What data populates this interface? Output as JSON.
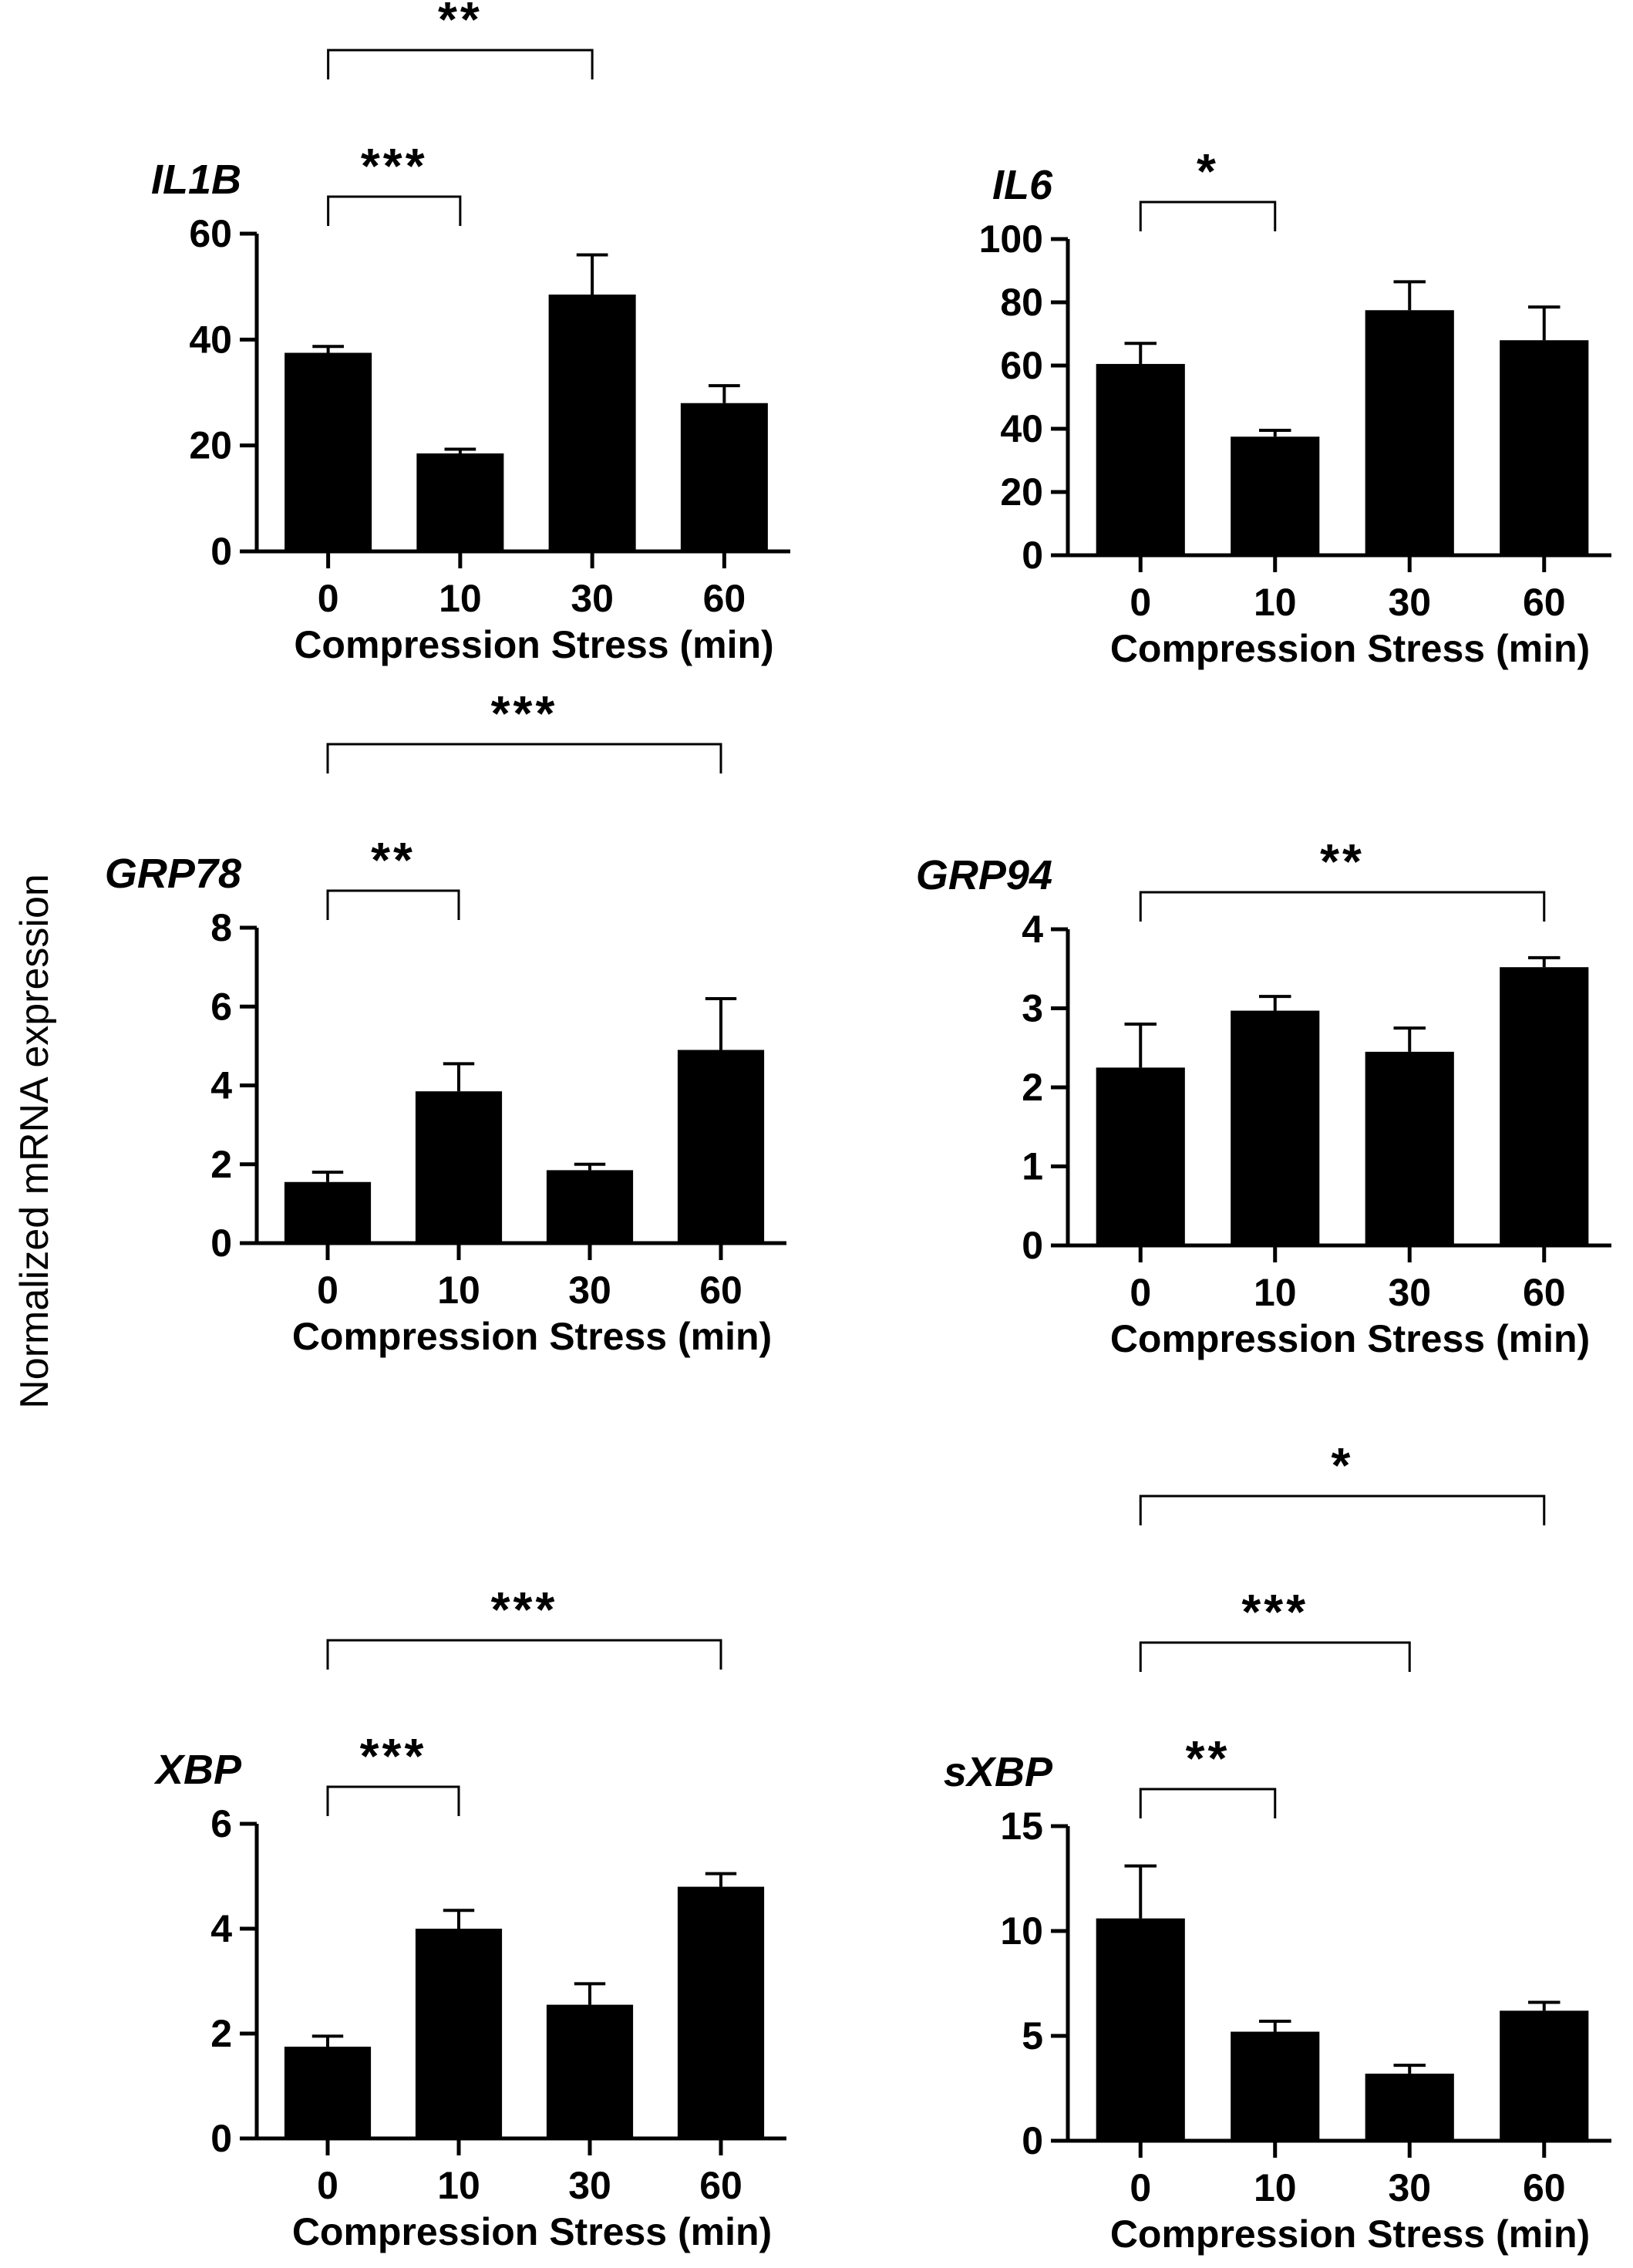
{
  "figure": {
    "shared_ylabel": "Normalized mRNA expression",
    "accent_color": "#000000"
  },
  "chart_data": [
    {
      "type": "bar",
      "title": "IL1B",
      "xlabel": "Compression Stress (min)",
      "ylabel": "Normalized mRNA expression",
      "categories": [
        "0",
        "10",
        "30",
        "60"
      ],
      "values": [
        37.5,
        18.5,
        48.5,
        28
      ],
      "errors": [
        1.2,
        0.8,
        7.5,
        3.3
      ],
      "ylim": [
        0,
        60
      ],
      "yticks": [
        0,
        20,
        40,
        60
      ],
      "ytick_labels": [
        "0",
        "20",
        "40",
        "60"
      ],
      "significance": [
        {
          "from": "0",
          "to": "10",
          "label": "***"
        },
        {
          "from": "0",
          "to": "30",
          "label": "**"
        }
      ]
    },
    {
      "type": "bar",
      "title": "IL6",
      "xlabel": "Compression Stress (min)",
      "ylabel": "Normalized mRNA expression",
      "categories": [
        "0",
        "10",
        "30",
        "60"
      ],
      "values": [
        60.5,
        37.5,
        77.5,
        68
      ],
      "errors": [
        6.5,
        2,
        9,
        10.5
      ],
      "ylim": [
        0,
        100
      ],
      "yticks": [
        0,
        20,
        40,
        60,
        80,
        100
      ],
      "ytick_labels": [
        "0",
        "20",
        "40",
        "60",
        "80",
        "100"
      ],
      "significance": [
        {
          "from": "0",
          "to": "10",
          "label": "*"
        }
      ]
    },
    {
      "type": "bar",
      "title": "GRP78",
      "xlabel": "Compression Stress (min)",
      "ylabel": "Normalized mRNA expression",
      "categories": [
        "0",
        "10",
        "30",
        "60"
      ],
      "values": [
        1.55,
        3.85,
        1.85,
        4.9
      ],
      "errors": [
        0.25,
        0.7,
        0.15,
        1.3
      ],
      "ylim": [
        0,
        8
      ],
      "yticks": [
        0,
        2,
        4,
        6,
        8
      ],
      "ytick_labels": [
        "0",
        "2",
        "4",
        "6",
        "8"
      ],
      "significance": [
        {
          "from": "0",
          "to": "10",
          "label": "**"
        },
        {
          "from": "0",
          "to": "60",
          "label": "***"
        }
      ]
    },
    {
      "type": "bar",
      "title": "GRP94",
      "xlabel": "Compression Stress (min)",
      "ylabel": "Normalized mRNA expression",
      "categories": [
        "0",
        "10",
        "30",
        "60"
      ],
      "values": [
        2.25,
        2.97,
        2.45,
        3.52
      ],
      "errors": [
        0.55,
        0.18,
        0.3,
        0.12
      ],
      "ylim": [
        0,
        4
      ],
      "yticks": [
        0,
        1,
        2,
        3,
        4
      ],
      "ytick_labels": [
        "0",
        "1",
        "2",
        "3",
        "4"
      ],
      "significance": [
        {
          "from": "0",
          "to": "60",
          "label": "**"
        }
      ]
    },
    {
      "type": "bar",
      "title": "XBP",
      "xlabel": "Compression Stress (min)",
      "ylabel": "Normalized mRNA expression",
      "categories": [
        "0",
        "10",
        "30",
        "60"
      ],
      "values": [
        1.75,
        4.0,
        2.55,
        4.8
      ],
      "errors": [
        0.2,
        0.35,
        0.4,
        0.25
      ],
      "ylim": [
        0,
        6
      ],
      "yticks": [
        0,
        2,
        4,
        6
      ],
      "ytick_labels": [
        "0",
        "2",
        "4",
        "6"
      ],
      "significance": [
        {
          "from": "0",
          "to": "10",
          "label": "***"
        },
        {
          "from": "0",
          "to": "60",
          "label": "***"
        }
      ]
    },
    {
      "type": "bar",
      "title": "sXBP",
      "xlabel": "Compression Stress (min)",
      "ylabel": "Normalized mRNA expression",
      "categories": [
        "0",
        "10",
        "30",
        "60"
      ],
      "values": [
        10.6,
        5.2,
        3.2,
        6.2
      ],
      "errors": [
        2.5,
        0.5,
        0.4,
        0.4
      ],
      "ylim": [
        0,
        15
      ],
      "yticks": [
        0,
        5,
        10,
        15
      ],
      "ytick_labels": [
        "0",
        "5",
        "10",
        "15"
      ],
      "significance": [
        {
          "from": "0",
          "to": "10",
          "label": "**"
        },
        {
          "from": "0",
          "to": "30",
          "label": "***"
        },
        {
          "from": "0",
          "to": "60",
          "label": "*"
        }
      ]
    }
  ]
}
